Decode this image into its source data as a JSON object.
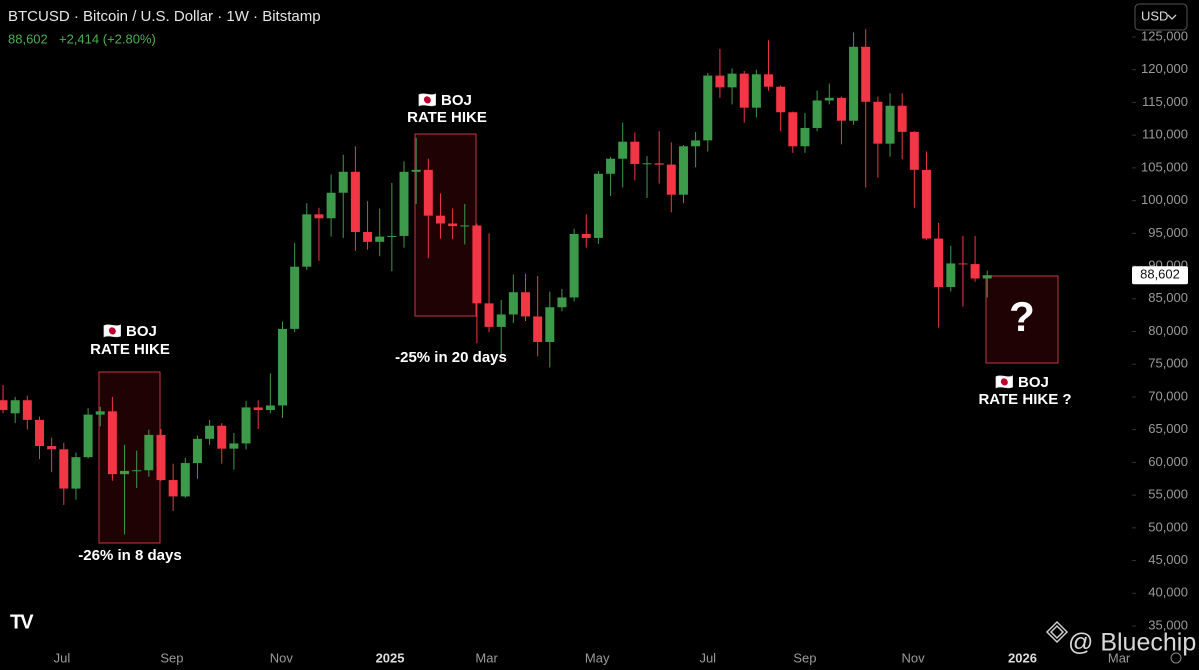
{
  "header": {
    "price": "88,602",
    "change": "+2,414 (+2.80%)",
    "currency": "USD"
  },
  "watermark": "@ Bluechip",
  "annotations": [
    {
      "flag": "🇯🇵 BOJ",
      "label": "RATE HIKE",
      "note": "-26% in 8 days"
    },
    {
      "flag": "🇯🇵 BOJ",
      "label": "RATE HIKE",
      "note": "-25% in 20 days"
    },
    {
      "flag": "🇯🇵 BOJ",
      "label": "RATE HIKE ?",
      "note": "?"
    }
  ],
  "chart_data": {
    "type": "candlestick",
    "title": "BTCUSD · Bitcoin / U.S. Dollar · 1W · Bitstamp",
    "categories": [
      null,
      null,
      null,
      null,
      null,
      null,
      null,
      null,
      null,
      null,
      null,
      null,
      null,
      null,
      null,
      null,
      null,
      null,
      null,
      null,
      null,
      null,
      null,
      null,
      null,
      null,
      null,
      null,
      null,
      null,
      null,
      null,
      null,
      null,
      null,
      null,
      null,
      null,
      null,
      null,
      null,
      null,
      null,
      null,
      null,
      null,
      null,
      null,
      null,
      null,
      null,
      null,
      null,
      null,
      null,
      null,
      null,
      null,
      null,
      null,
      null,
      null,
      null,
      null,
      null,
      null,
      null,
      null,
      null,
      null,
      null,
      null,
      null,
      null,
      null,
      null,
      null,
      null,
      null,
      null,
      null,
      null
    ],
    "up_color": "#3d9a4b",
    "down_color": "#f23645",
    "series": [
      {
        "open": [
          69500,
          67500,
          69500,
          66500,
          62500,
          62000,
          56000,
          60800,
          67300,
          67800,
          58200,
          58700,
          58800,
          64200,
          57300,
          54800,
          59900,
          63600,
          65600,
          62100,
          62900,
          68400,
          68000,
          68700,
          80400,
          89900,
          97900,
          97300,
          101200,
          104400,
          95200,
          93700,
          94500,
          94600,
          104400,
          104700,
          97700,
          96500,
          96100,
          96200,
          84300,
          80700,
          82600,
          86000,
          82300,
          78400,
          83700,
          85200,
          94900,
          94300,
          104100,
          106400,
          109000,
          105600,
          105700,
          105500,
          100900,
          108300,
          109200,
          119100,
          117300,
          119400,
          114200,
          119300,
          117400,
          113500,
          108300,
          111100,
          115300,
          115700,
          112200,
          123500,
          115100,
          108700,
          114500,
          110500,
          104700,
          94200,
          86800,
          90400,
          90300,
          88100
        ],
        "high": [
          71800,
          70000,
          70200,
          67000,
          63800,
          63000,
          61500,
          68300,
          68500,
          70000,
          62700,
          61800,
          65000,
          65100,
          59800,
          60700,
          64100,
          66500,
          66000,
          64500,
          69400,
          69500,
          73600,
          81500,
          93500,
          99600,
          98900,
          104000,
          107000,
          108300,
          99900,
          98800,
          102700,
          106000,
          109600,
          106400,
          101100,
          98800,
          99500,
          96500,
          95000,
          84800,
          88700,
          88800,
          88500,
          86100,
          86500,
          95700,
          97900,
          104500,
          106700,
          111900,
          110400,
          106800,
          110600,
          108900,
          108500,
          110500,
          119500,
          123200,
          120200,
          119800,
          120000,
          124500,
          117600,
          113600,
          113400,
          116800,
          117900,
          115900,
          125700,
          126200,
          115900,
          116400,
          116400,
          110600,
          107500,
          96600,
          93100,
          94600,
          94600,
          89300
        ],
        "low": [
          67500,
          66000,
          65000,
          60500,
          58500,
          53500,
          54300,
          60600,
          65500,
          57200,
          49000,
          56100,
          57800,
          57200,
          52600,
          54600,
          57500,
          62700,
          59800,
          58900,
          62000,
          65100,
          67500,
          66800,
          79900,
          89400,
          90800,
          94500,
          94300,
          92300,
          92500,
          91500,
          89200,
          92800,
          99500,
          91200,
          94200,
          94100,
          93300,
          78200,
          79900,
          76600,
          81300,
          81600,
          76200,
          74500,
          83100,
          84600,
          92800,
          93400,
          100700,
          102000,
          103100,
          100400,
          102600,
          98200,
          99600,
          105100,
          107500,
          115700,
          114700,
          111900,
          112700,
          116800,
          110600,
          107300,
          107300,
          110600,
          114700,
          108600,
          111600,
          102000,
          103500,
          106700,
          106300,
          98900,
          94000,
          80600,
          86100,
          83800,
          87600,
          85200
        ],
        "close": [
          68000,
          69500,
          66500,
          62500,
          62000,
          56000,
          60800,
          67300,
          67800,
          58200,
          58700,
          58800,
          64200,
          57300,
          54800,
          59900,
          63600,
          65600,
          62100,
          62900,
          68400,
          68000,
          68700,
          80400,
          89900,
          97900,
          97300,
          101200,
          104400,
          95200,
          93700,
          94500,
          94600,
          104400,
          104700,
          97700,
          96500,
          96100,
          96200,
          84300,
          80700,
          82600,
          86000,
          82300,
          78400,
          83700,
          85200,
          94900,
          94300,
          104100,
          106400,
          109000,
          105600,
          105700,
          105500,
          100900,
          108300,
          109200,
          119100,
          117300,
          119400,
          114200,
          119300,
          117400,
          113500,
          108300,
          111100,
          115300,
          115700,
          112200,
          123500,
          115100,
          108700,
          114500,
          110500,
          104700,
          94200,
          86800,
          90400,
          90300,
          88100,
          88602
        ]
      }
    ],
    "last_price_label": "88,602",
    "xlim": [
      -0.25,
      92.75
    ],
    "xticks": [
      {
        "value": 4.85,
        "label": "Jul"
      },
      {
        "value": 13.9,
        "label": "Sep"
      },
      {
        "value": 22.9,
        "label": "Nov"
      },
      {
        "value": 31.85,
        "label": "2025"
      },
      {
        "value": 39.8,
        "label": "Mar"
      },
      {
        "value": 48.9,
        "label": "May"
      },
      {
        "value": 58.0,
        "label": "Jul"
      },
      {
        "value": 66.0,
        "label": "Sep"
      },
      {
        "value": 74.9,
        "label": "Nov"
      },
      {
        "value": 83.9,
        "label": "2026"
      },
      {
        "value": 91.85,
        "label": "Mar"
      }
    ],
    "ylim": [
      32100,
      130650
    ],
    "yticks": [
      {
        "value": 35000,
        "label": "35,000"
      },
      {
        "value": 40000,
        "label": "40,000"
      },
      {
        "value": 45000,
        "label": "45,000"
      },
      {
        "value": 50000,
        "label": "50,000"
      },
      {
        "value": 55000,
        "label": "55,000"
      },
      {
        "value": 60000,
        "label": "60,000"
      },
      {
        "value": 65000,
        "label": "65,000"
      },
      {
        "value": 70000,
        "label": "70,000"
      },
      {
        "value": 75000,
        "label": "75,000"
      },
      {
        "value": 80000,
        "label": "80,000"
      },
      {
        "value": 85000,
        "label": "85,000"
      },
      {
        "value": 90000,
        "label": "90,000"
      },
      {
        "value": 95000,
        "label": "95,000"
      },
      {
        "value": 100000,
        "label": "100,000"
      },
      {
        "value": 105000,
        "label": "105,000"
      },
      {
        "value": 110000,
        "label": "110,000"
      },
      {
        "value": 115000,
        "label": "115,000"
      },
      {
        "value": 120000,
        "label": "120,000"
      },
      {
        "value": 125000,
        "label": "125,000"
      }
    ]
  }
}
